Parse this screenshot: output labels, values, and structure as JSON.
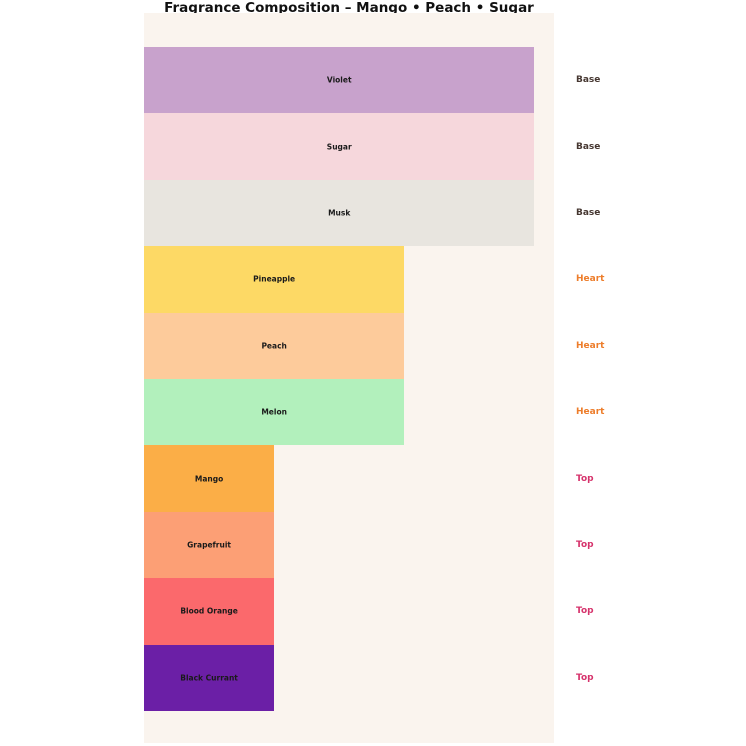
{
  "title": "Fragrance Composition – Mango • Peach • Sugar",
  "chart_data": {
    "type": "bar",
    "orientation": "horizontal",
    "title": "Fragrance Composition – Mango • Peach • Sugar",
    "categories": [
      "Violet",
      "Sugar",
      "Musk",
      "Pineapple",
      "Peach",
      "Melon",
      "Mango",
      "Grapefruit",
      "Blood Orange",
      "Black Currant"
    ],
    "values": [
      3,
      3,
      3,
      2,
      2,
      2,
      1,
      1,
      1,
      1
    ],
    "value_note": "relative bar lengths; Base:Heart:Top = 3:2:1 (no numeric axis shown)",
    "groups": [
      "Base",
      "Base",
      "Base",
      "Heart",
      "Heart",
      "Heart",
      "Top",
      "Top",
      "Top",
      "Top"
    ],
    "bar_colors": [
      "#C8A2CC",
      "#F6D7DC",
      "#E8E5DF",
      "#FDD965",
      "#FDCB9B",
      "#B2F0BC",
      "#FBAE47",
      "#FC9F75",
      "#FB696C",
      "#6B1FA6"
    ],
    "bar_label_color": "#1a1a1a",
    "group_label_colors": {
      "Base": "#463731",
      "Heart": "#ED7D2B",
      "Top": "#D6336C"
    },
    "xlim": [
      0,
      3.15
    ],
    "grid": false,
    "legend": "none",
    "axis_ticks": "none",
    "plot_background": "#FAF4EE",
    "page_background": "#FFFFFF",
    "bars_ordered_top_to_bottom": true
  }
}
